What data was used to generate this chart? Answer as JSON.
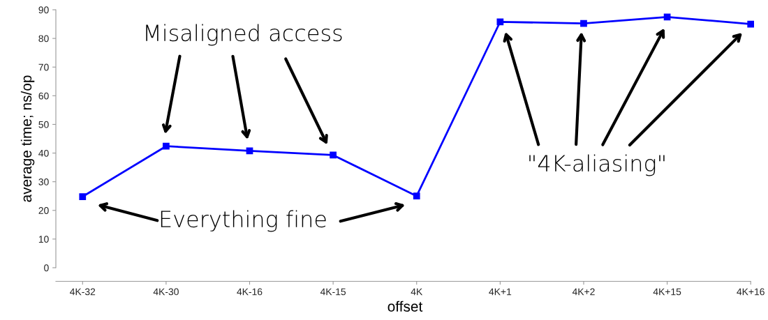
{
  "chart_data": {
    "type": "line",
    "xlabel": "offset",
    "ylabel": "average time; ns/op",
    "categories": [
      "4K-32",
      "4K-30",
      "4K-16",
      "4K-15",
      "4K",
      "4K+1",
      "4K+2",
      "4K+15",
      "4K+16"
    ],
    "series": [
      {
        "color": "#0000ff",
        "values": [
          24.8,
          42.4,
          40.8,
          39.3,
          25.0,
          85.8,
          85.2,
          87.5,
          85.0
        ]
      }
    ],
    "ylim": [
      0,
      90
    ],
    "yticks": [
      0,
      10,
      20,
      30,
      40,
      50,
      60,
      70,
      80,
      90
    ],
    "marker": "square",
    "line_style": "solid",
    "grid": false,
    "legend": false,
    "annotations": [
      "Misaligned access",
      "Everything fine",
      "\"4K-aliasing\""
    ]
  }
}
